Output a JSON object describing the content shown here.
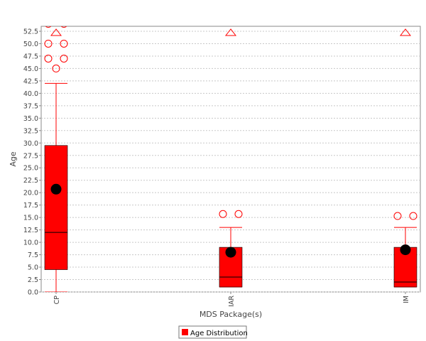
{
  "chart_data": {
    "type": "boxplot",
    "title": "",
    "xlabel": "MDS Package(s)",
    "ylabel": "Age",
    "ylim": [
      0,
      53.5
    ],
    "yticks": [
      0.0,
      2.5,
      5.0,
      7.5,
      10.0,
      12.5,
      15.0,
      17.5,
      20.0,
      22.5,
      25.0,
      27.5,
      30.0,
      32.5,
      35.0,
      37.5,
      40.0,
      42.5,
      45.0,
      47.5,
      50.0,
      52.5
    ],
    "grid": true,
    "legend": {
      "position": "bottom",
      "entries": [
        "Age Distribution"
      ]
    },
    "colors": {
      "box": "#ff0000",
      "mean": "#000000",
      "outlier": "#ff0000",
      "grid": "#c8c8c8"
    },
    "categories": [
      "CP",
      "IAR",
      "IM"
    ],
    "series": [
      {
        "name": "Age Distribution",
        "boxes": [
          {
            "category": "CP",
            "q1": 4.5,
            "median": 12.0,
            "q3": 29.5,
            "whisker_low": 0.0,
            "whisker_high": 42.0,
            "mean": 20.7,
            "outliers": [
              45.0,
              47.0,
              47.0,
              50.0,
              50.0,
              54.0,
              54.0
            ],
            "far_outlier_marker": true
          },
          {
            "category": "IAR",
            "q1": 1.0,
            "median": 3.0,
            "q3": 9.0,
            "whisker_low": 1.0,
            "whisker_high": 13.0,
            "mean": 8.0,
            "outliers": [
              15.7,
              15.7
            ],
            "far_outlier_marker": true
          },
          {
            "category": "IM",
            "q1": 1.0,
            "median": 2.0,
            "q3": 9.0,
            "whisker_low": 1.0,
            "whisker_high": 13.0,
            "mean": 8.5,
            "outliers": [
              15.3,
              15.3
            ],
            "far_outlier_marker": true
          }
        ]
      }
    ]
  }
}
